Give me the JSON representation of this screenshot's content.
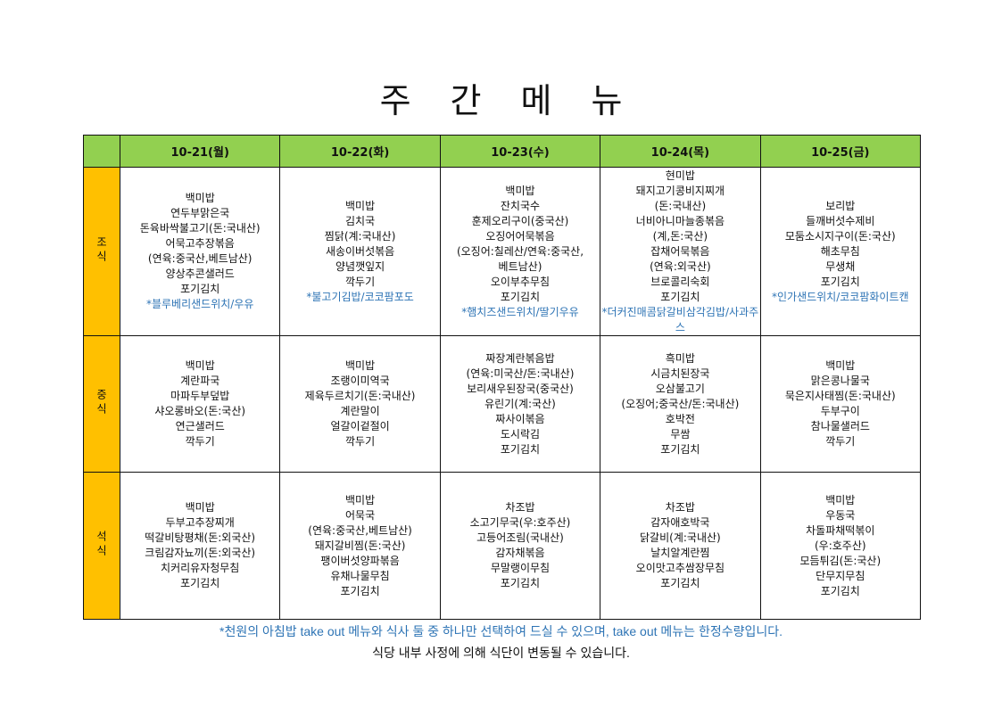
{
  "title": "주간메뉴",
  "colors": {
    "header_bg": "#92d050",
    "meal_label_bg": "#ffc000",
    "takeout_text": "#2e74b5"
  },
  "days": [
    "10-21(월)",
    "10-22(화)",
    "10-23(수)",
    "10-24(목)",
    "10-25(금)"
  ],
  "meals": [
    {
      "label": "조식",
      "cells": [
        {
          "items": [
            "백미밥",
            "연두부맑은국",
            "돈육바싹불고기(돈:국내산)",
            "어묵고추장볶음",
            "(연육:중국산,베트남산)",
            "양상추콘샐러드",
            "포기김치"
          ],
          "takeout": "*블루베리샌드위치/우유"
        },
        {
          "items": [
            "백미밥",
            "김치국",
            "찜닭(계:국내산)",
            "새송이버섯볶음",
            "양념깻잎지",
            "깍두기"
          ],
          "takeout": "*불고기김밥/코코팜포도"
        },
        {
          "items": [
            "백미밥",
            "잔치국수",
            "훈제오리구이(중국산)",
            "오징어어묵볶음",
            "(오징어:칠레산/연육:중국산,",
            "베트남산)",
            "오이부추무침",
            "포기김치"
          ],
          "takeout": "*햄치즈샌드위치/딸기우유"
        },
        {
          "items": [
            "현미밥",
            "돼지고기콩비지찌개",
            "(돈:국내산)",
            "너비아니마늘종볶음",
            "(계,돈:국산)",
            "잡채어묵볶음",
            "(연육:외국산)",
            "브로콜리숙회",
            "포기김치"
          ],
          "takeout": "*더커진매콤닭갈비삼각김밥/사과주스"
        },
        {
          "items": [
            "보리밥",
            "들깨버섯수제비",
            "모둠소시지구이(돈:국산)",
            "해초무침",
            "무생채",
            "포기김치"
          ],
          "takeout": "*인가샌드위치/코코팜화이트캔"
        }
      ]
    },
    {
      "label": "중식",
      "cells": [
        {
          "items": [
            "백미밥",
            "계란파국",
            "마파두부덮밥",
            "샤오롱바오(돈:국산)",
            "연근샐러드",
            "깍두기"
          ]
        },
        {
          "items": [
            "백미밥",
            "조랭이미역국",
            "제육두르치기(돈:국내산)",
            "계란말이",
            "얼갈이겉절이",
            "깍두기"
          ]
        },
        {
          "items": [
            "짜장계란볶음밥",
            "(연육:미국산/돈:국내산)",
            "보리새우된장국(중국산)",
            "유린기(계:국산)",
            "짜사이볶음",
            "도시락김",
            "포기김치"
          ]
        },
        {
          "items": [
            "흑미밥",
            "시금치된장국",
            "오삼불고기",
            "(오징어;중국산/돈:국내산)",
            "호박전",
            "무쌈",
            "포기김치"
          ]
        },
        {
          "items": [
            "백미밥",
            "맑은콩나물국",
            "묵은지사태찜(돈:국내산)",
            "두부구이",
            "참나물샐러드",
            "깍두기"
          ]
        }
      ]
    },
    {
      "label": "석식",
      "cells": [
        {
          "items": [
            "백미밥",
            "두부고추장찌개",
            "떡갈비탕평채(돈:외국산)",
            "크림감자뇨끼(돈:외국산)",
            "치커리유자청무침",
            "포기김치"
          ]
        },
        {
          "items": [
            "백미밥",
            "어묵국",
            "(연육:중국산,베트남산)",
            "돼지갈비찜(돈:국산)",
            "팽이버섯양파볶음",
            "유채나물무침",
            "포기김치"
          ]
        },
        {
          "items": [
            "차조밥",
            "소고기무국(우:호주산)",
            "고등어조림(국내산)",
            "감자채볶음",
            "무말랭이무침",
            "포기김치"
          ]
        },
        {
          "items": [
            "차조밥",
            "감자애호박국",
            "닭갈비(계:국내산)",
            "날치알계란찜",
            "오이맛고추쌈장무침",
            "포기김치"
          ]
        },
        {
          "items": [
            "백미밥",
            "우동국",
            "차돌파채떡볶이",
            "(우:호주산)",
            "모듬튀김(돈:국산)",
            "단무지무침",
            "포기김치"
          ]
        }
      ]
    }
  ],
  "notes": {
    "takeout_note": "*천원의 아침밥 take out 메뉴와 식사 둘 중 하나만 선택하여 드실 수 있으며, take out 메뉴는 한정수량입니다.",
    "change_note": "식당 내부 사정에 의해 식단이 변동될 수 있습니다."
  }
}
